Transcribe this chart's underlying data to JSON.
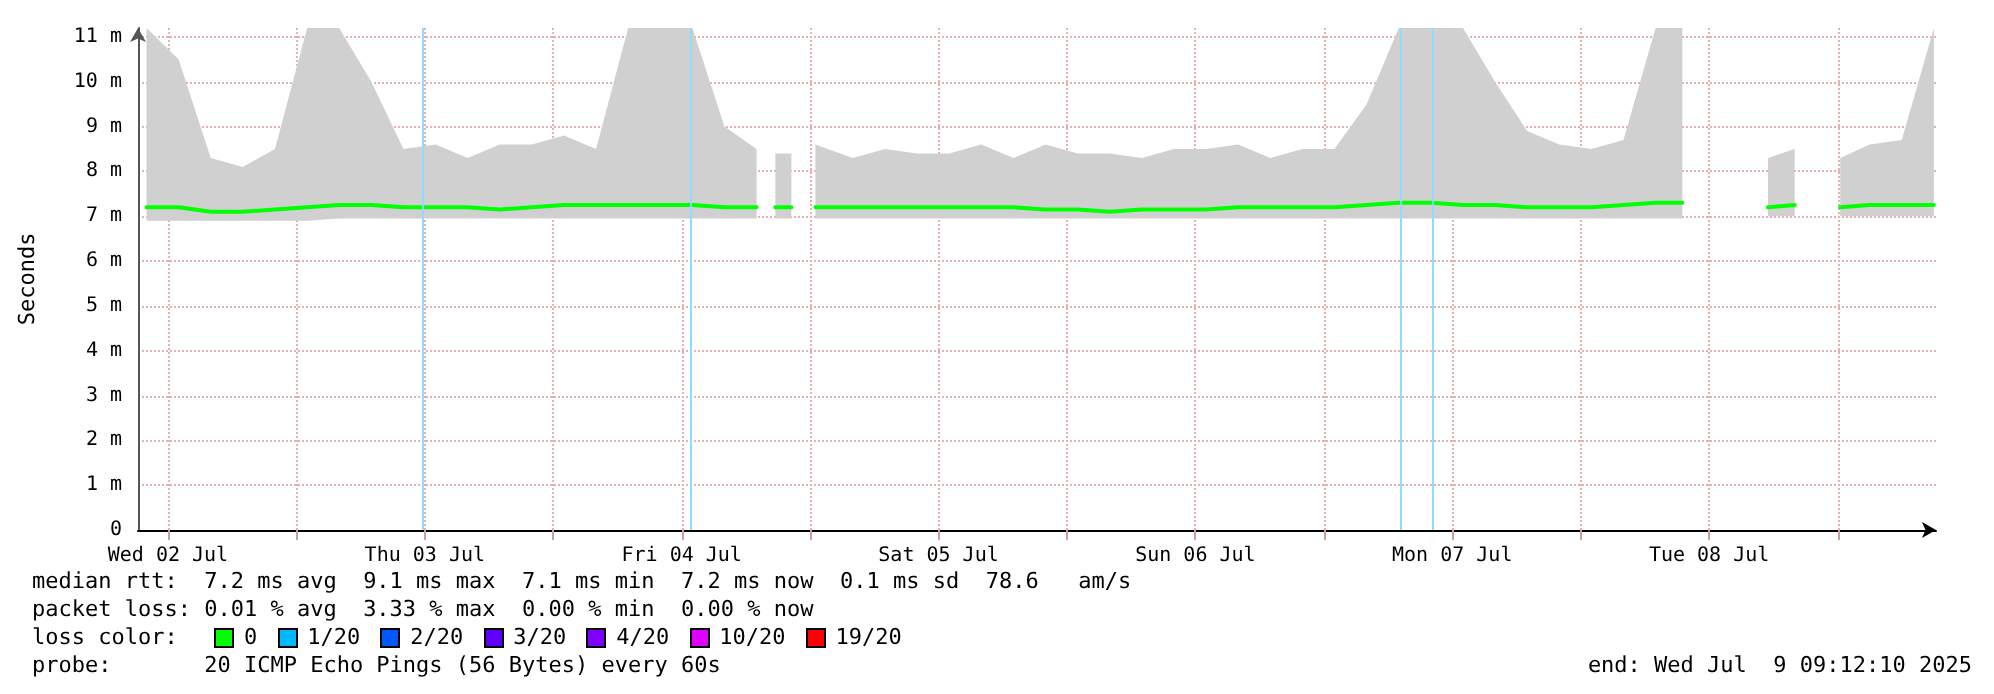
{
  "chart_data": {
    "type": "line",
    "ylabel": "Seconds",
    "x": [
      "2025-07-02T10:00",
      "2025-07-02T13:00",
      "2025-07-02T16:00",
      "2025-07-02T19:00",
      "2025-07-02T22:00",
      "2025-07-03T01:00",
      "2025-07-03T04:00",
      "2025-07-03T07:00",
      "2025-07-03T10:00",
      "2025-07-03T13:00",
      "2025-07-03T16:00",
      "2025-07-03T19:00",
      "2025-07-03T22:00",
      "2025-07-04T01:00",
      "2025-07-04T04:00",
      "2025-07-04T07:00",
      "2025-07-04T10:00",
      "2025-07-04T13:00",
      "2025-07-04T16:00",
      "2025-07-04T19:00",
      "2025-07-04T20:00",
      "2025-07-04T20:45",
      "2025-07-04T22:15",
      "2025-07-04T23:00",
      "2025-07-05T00:30",
      "2025-07-05T04:00",
      "2025-07-05T07:00",
      "2025-07-05T10:00",
      "2025-07-05T13:00",
      "2025-07-05T16:00",
      "2025-07-05T19:00",
      "2025-07-05T22:00",
      "2025-07-06T01:00",
      "2025-07-06T04:00",
      "2025-07-06T07:00",
      "2025-07-06T10:00",
      "2025-07-06T13:00",
      "2025-07-06T16:00",
      "2025-07-06T19:00",
      "2025-07-06T22:00",
      "2025-07-07T01:00",
      "2025-07-07T04:00",
      "2025-07-07T07:00",
      "2025-07-07T10:00",
      "2025-07-07T13:00",
      "2025-07-07T16:00",
      "2025-07-07T19:00",
      "2025-07-07T22:00",
      "2025-07-08T01:00",
      "2025-07-08T04:00",
      "2025-07-08T07:00",
      "2025-07-08T09:30",
      "2025-07-08T13:00",
      "2025-07-08T17:30",
      "2025-07-08T20:00",
      "2025-07-08T22:30",
      "2025-07-09T00:15",
      "2025-07-09T03:00",
      "2025-07-09T06:00",
      "2025-07-09T09:00"
    ],
    "series": [
      {
        "color": "#00ff00",
        "values": [
          7.2,
          7.2,
          7.1,
          7.1,
          7.15,
          7.2,
          7.25,
          7.25,
          7.2,
          7.2,
          7.2,
          7.15,
          7.2,
          7.25,
          7.25,
          7.25,
          7.25,
          7.25,
          7.2,
          7.2,
          null,
          7.2,
          7.2,
          null,
          7.2,
          7.2,
          7.2,
          7.2,
          7.2,
          7.2,
          7.2,
          7.15,
          7.15,
          7.1,
          7.15,
          7.15,
          7.15,
          7.2,
          7.2,
          7.2,
          7.2,
          7.25,
          7.3,
          7.3,
          7.25,
          7.25,
          7.2,
          7.2,
          7.2,
          7.25,
          7.3,
          7.3,
          null,
          7.2,
          7.25,
          null,
          7.2,
          7.25,
          7.25,
          7.25
        ],
        "lower": [
          6.9,
          6.9,
          6.9,
          6.9,
          6.9,
          6.9,
          6.95,
          6.95,
          6.95,
          6.95,
          6.95,
          6.95,
          6.95,
          6.95,
          6.95,
          6.95,
          6.95,
          6.95,
          6.95,
          6.95,
          null,
          6.95,
          6.95,
          null,
          6.95,
          6.95,
          6.95,
          6.95,
          6.95,
          6.95,
          6.95,
          6.95,
          6.95,
          6.95,
          6.95,
          6.95,
          6.95,
          6.95,
          6.95,
          6.95,
          6.95,
          6.95,
          6.95,
          6.95,
          6.95,
          6.95,
          6.95,
          6.95,
          6.95,
          6.95,
          6.95,
          6.95,
          null,
          7.0,
          7.0,
          null,
          7.0,
          7.0,
          7.0,
          7.0
        ],
        "upper": [
          11.2,
          10.5,
          8.3,
          8.1,
          8.5,
          11.2,
          11.2,
          10,
          8.5,
          8.6,
          8.3,
          8.6,
          8.6,
          8.8,
          8.5,
          11.2,
          11.2,
          11.2,
          9,
          8.5,
          null,
          8.4,
          8.4,
          null,
          8.6,
          8.3,
          8.5,
          8.4,
          8.4,
          8.6,
          8.3,
          8.6,
          8.4,
          8.4,
          8.3,
          8.5,
          8.5,
          8.6,
          8.3,
          8.5,
          8.5,
          9.5,
          11.2,
          11.2,
          11.2,
          10,
          8.9,
          8.6,
          8.5,
          8.7,
          11.2,
          11.2,
          null,
          8.3,
          8.5,
          null,
          8.3,
          8.6,
          8.7,
          11.2
        ]
      }
    ],
    "xlim": [
      "2025-07-02T09:12",
      "2025-07-09T09:12"
    ],
    "xticks": [
      {
        "value": "2025-07-02T12:00",
        "label": "Wed 02 Jul"
      },
      {
        "value": "2025-07-03T00:00",
        "label": null
      },
      {
        "value": "2025-07-03T12:00",
        "label": "Thu 03 Jul"
      },
      {
        "value": "2025-07-04T00:00",
        "label": null
      },
      {
        "value": "2025-07-04T12:00",
        "label": "Fri 04 Jul"
      },
      {
        "value": "2025-07-05T00:00",
        "label": null
      },
      {
        "value": "2025-07-05T12:00",
        "label": "Sat 05 Jul"
      },
      {
        "value": "2025-07-06T00:00",
        "label": null
      },
      {
        "value": "2025-07-06T12:00",
        "label": "Sun 06 Jul"
      },
      {
        "value": "2025-07-07T00:00",
        "label": null
      },
      {
        "value": "2025-07-07T12:00",
        "label": "Mon 07 Jul"
      },
      {
        "value": "2025-07-08T00:00",
        "label": null
      },
      {
        "value": "2025-07-08T12:00",
        "label": "Tue 08 Jul"
      },
      {
        "value": "2025-07-09T00:00",
        "label": null
      }
    ],
    "ylim": [
      0,
      11.2
    ],
    "yticks": [
      0,
      {
        "value": 1,
        "label": "1 m"
      },
      {
        "value": 2,
        "label": "2 m"
      },
      {
        "value": 3,
        "label": "3 m"
      },
      {
        "value": 4,
        "label": "4 m"
      },
      {
        "value": 5,
        "label": "5 m"
      },
      {
        "value": 6,
        "label": "6 m"
      },
      {
        "value": 7,
        "label": "7 m"
      },
      {
        "value": 8,
        "label": "8 m"
      },
      {
        "value": 9,
        "label": "9 m"
      },
      {
        "value": 10,
        "label": "10 m"
      },
      {
        "value": 11,
        "label": "11 m"
      }
    ],
    "ref_lines": [
      {
        "axis": "x",
        "value": "2025-07-03T11:48",
        "color": "#8fdcff"
      },
      {
        "axis": "x",
        "value": "2025-07-04T12:47",
        "color": "#8fdcff"
      },
      {
        "axis": "x",
        "value": "2025-07-07T07:10",
        "color": "#8fdcff"
      },
      {
        "axis": "x",
        "value": "2025-07-07T10:10",
        "color": "#8fdcff"
      }
    ],
    "grid": true,
    "marker": "none",
    "line_style": "solid",
    "annotations": [
      "median rtt:  7.2 ms avg  9.1 ms max  7.1 ms min  7.2 ms now  0.1 ms sd  78.6   am/s",
      "packet loss: 0.01 % avg  3.33 % max  0.00 % min  0.00 % now",
      "loss color:",
      "0",
      "1/20",
      "2/20",
      "3/20",
      "4/20",
      "10/20",
      "19/20",
      "probe:       20 ICMP Echo Pings (56 Bytes) every 60s",
      "end: Wed Jul  9 09:12:10 2025"
    ]
  }
}
